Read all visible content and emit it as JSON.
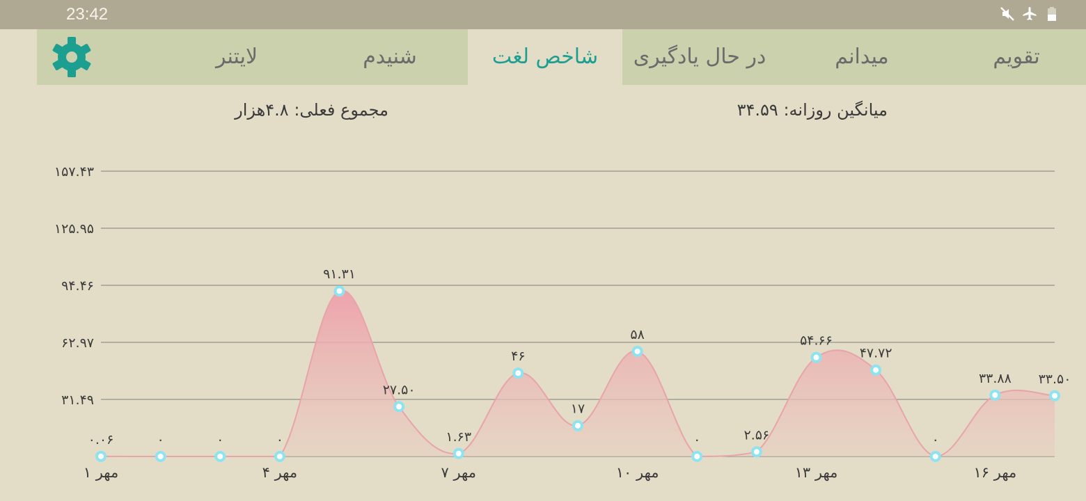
{
  "status_bar": {
    "time": "23:42",
    "icons": [
      "mute-icon",
      "airplane-mode-icon",
      "battery-icon"
    ]
  },
  "tabs": [
    {
      "id": "calendar",
      "label": "تقویم",
      "active": false
    },
    {
      "id": "known",
      "label": "میدانم",
      "active": false
    },
    {
      "id": "learning",
      "label": "در حال یادگیری",
      "active": false
    },
    {
      "id": "word-index",
      "label": "شاخص لغت",
      "active": true
    },
    {
      "id": "heard",
      "label": "شنیدم",
      "active": false
    },
    {
      "id": "leitner",
      "label": "لایتنر",
      "active": false
    }
  ],
  "settings_icon": "gear-icon",
  "stats": {
    "daily_average": "میانگین روزانه: ۳۴.۵۹",
    "current_total": "مجموع فعلی: ۴.۸هزار"
  },
  "colors": {
    "accent": "#1c9f91",
    "tab_bg": "#ccd1ad",
    "page_bg": "#e3ddc7",
    "area_fill": "#eaa5ad",
    "point": "#8fe3f0"
  },
  "chart_data": {
    "type": "area",
    "x": [
      "1 مهر",
      "2 مهر",
      "3 مهر",
      "4 مهر",
      "5 مهر",
      "6 مهر",
      "7 مهر",
      "8 مهر",
      "9 مهر",
      "10 مهر",
      "11 مهر",
      "12 مهر",
      "13 مهر",
      "14 مهر",
      "15 مهر",
      "16 مهر",
      "17 مهر"
    ],
    "x_tick_labels": [
      {
        "index": 0,
        "label": "۱ مهر"
      },
      {
        "index": 3,
        "label": "۴ مهر"
      },
      {
        "index": 6,
        "label": "۷ مهر"
      },
      {
        "index": 9,
        "label": "۱۰ مهر"
      },
      {
        "index": 12,
        "label": "۱۳ مهر"
      },
      {
        "index": 15,
        "label": "۱۶ مهر"
      }
    ],
    "values": [
      0.06,
      0,
      0,
      0,
      91.31,
      27.5,
      1.63,
      46,
      17,
      58,
      0,
      2.56,
      54.66,
      47.72,
      0,
      33.88,
      33.5
    ],
    "value_labels": [
      "۰.۰۶",
      "۰",
      "۰",
      "۰",
      "۹۱.۳۱",
      "۲۷.۵۰",
      "۱.۶۳",
      "۴۶",
      "۱۷",
      "۵۸",
      "۰",
      "۲.۵۶",
      "۵۴.۶۶",
      "۴۷.۷۲",
      "۰",
      "۳۳.۸۸",
      "۳۳.۵۰"
    ],
    "y_ticks": [
      31.49,
      62.97,
      94.46,
      125.95,
      157.43
    ],
    "y_tick_labels": [
      "۳۱.۴۹",
      "۶۲.۹۷",
      "۹۴.۴۶",
      "۱۲۵.۹۵",
      "۱۵۷.۴۳"
    ],
    "ylim": [
      0,
      157.43
    ],
    "grid": true,
    "legend": "none"
  }
}
